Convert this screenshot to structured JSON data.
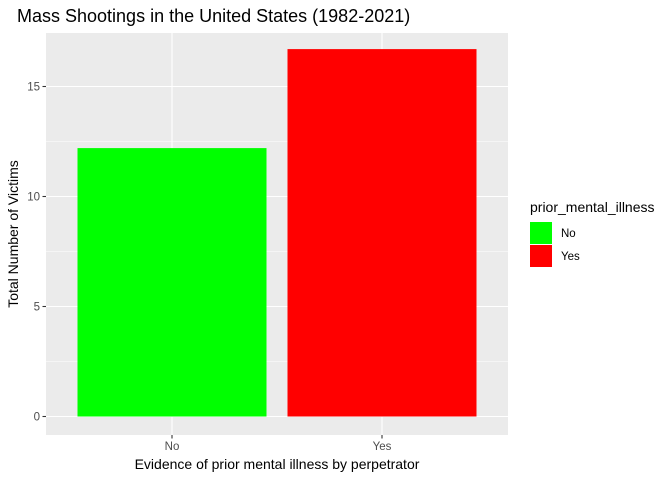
{
  "chart_data": {
    "type": "bar",
    "title": "Mass Shootings in the United States (1982-2021)",
    "xlabel": "Evidence of prior mental illness by perpetrator",
    "ylabel": "Total Number of Victims",
    "categories": [
      "No",
      "Yes"
    ],
    "values": [
      12.2,
      16.7
    ],
    "bar_colors": [
      "#00FF00",
      "#FF0000"
    ],
    "ylim": [
      0,
      17.5
    ],
    "yticks": [
      0,
      5,
      10,
      15
    ],
    "ytick_labels": [
      "0",
      "5",
      "10",
      "15"
    ],
    "grid": true,
    "panel_background": "#EBEBEB",
    "grid_color": "#FFFFFF",
    "legend": {
      "title": "prior_mental_illness",
      "position": "right",
      "entries": [
        {
          "label": "No",
          "color": "#00FF00"
        },
        {
          "label": "Yes",
          "color": "#FF0000"
        }
      ]
    }
  }
}
